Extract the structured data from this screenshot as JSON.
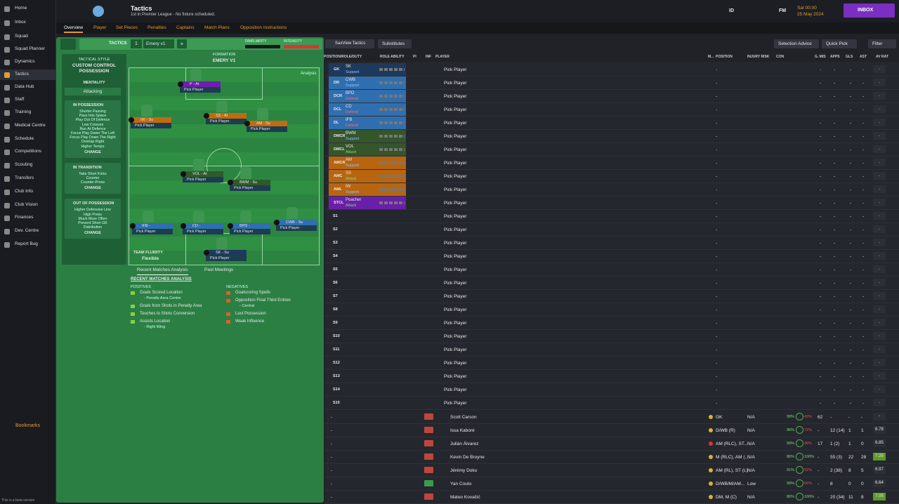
{
  "sidebar": {
    "items": [
      "Home",
      "Inbox",
      "Squad",
      "Squad Planner",
      "Dynamics",
      "Tactics",
      "Data Hub",
      "Staff",
      "Training",
      "Medical Centre",
      "Schedule",
      "Competitions",
      "Scouting",
      "Transfers",
      "Club Info",
      "Club Vision",
      "Finances",
      "Dev. Centre",
      "Report Bug"
    ],
    "bookmarks": "Bookmarks",
    "version_note": "This is a beta version"
  },
  "header": {
    "title": "Tactics",
    "subtitle": "1st in Premier League - No fixture scheduled.",
    "shortcuts": [
      "ID",
      "FM"
    ],
    "time": "Sat 00:00",
    "date": "25 May 2024",
    "inbox": "INBOX"
  },
  "tabs": [
    "Overview",
    "Player",
    "Set Pieces",
    "Penalties",
    "Captains",
    "Match Plans",
    "Opposition Instructions"
  ],
  "tactic_bar": {
    "label": "TACTICS",
    "slot": "1",
    "name": "Emery v1",
    "add": "+",
    "familiarity": "FAMILIARITY",
    "intensity": "INTENSITY"
  },
  "style": {
    "heading": "TACTICAL STYLE",
    "name": "CUSTOM CONTROL POSSESSION",
    "mentality_label": "MENTALITY",
    "mentality": "Attacking"
  },
  "phases": [
    {
      "title": "IN POSSESSION",
      "instructions": [
        "Shorter Passing",
        "Pass Into Space",
        "Play Out Of Defence",
        "Low Crosses",
        "Run At Defence",
        "Focus Play Down The Left",
        "Focus Play Down The Right",
        "Overlap Right",
        "Higher Tempo"
      ],
      "action": "CHANGE"
    },
    {
      "title": "IN TRANSITION",
      "instructions": [
        "Take Short Kicks",
        "Counter",
        "Counter-Press"
      ],
      "action": "CHANGE"
    },
    {
      "title": "OUT OF POSSESSION",
      "instructions": [
        "Higher Defensive Line",
        "High Press",
        "Much More Often",
        "Prevent Short GK",
        "Distribution"
      ],
      "action": "CHANGE"
    }
  ],
  "pitch": {
    "formation_label": "FORMATION",
    "formation": "EMERY V1",
    "analysis": "Analysis",
    "fluidity_label": "TEAM FLUIDITY",
    "fluidity": "Flexible",
    "player_placeholder": "Pick Player",
    "players": [
      {
        "role": "P - At",
        "color": "#6e1fb0"
      },
      {
        "role": "IW - Su",
        "color": "#c06b10"
      },
      {
        "role": "SS - At",
        "color": "#c06b10"
      },
      {
        "role": "AM - Su",
        "color": "#c06b10"
      },
      {
        "role": "VOL - At",
        "color": "#2f5a2a"
      },
      {
        "role": "BWM - Su",
        "color": "#2f5a2a"
      },
      {
        "role": "IFB -",
        "color": "#2f6fb0"
      },
      {
        "role": "CD -",
        "color": "#2f6fb0"
      },
      {
        "role": "BPD -",
        "color": "#2f6fb0"
      },
      {
        "role": "CWB - Su",
        "color": "#2f6fb0"
      },
      {
        "role": "SK - Su",
        "color": "#1d3a5c"
      }
    ]
  },
  "analysis": {
    "tabs": [
      "Recent Matches Analysis",
      "Past Meetings"
    ],
    "heading": "RECENT MATCHES ANALYSIS",
    "positives_label": "POSITIVES",
    "positives": [
      {
        "text": "Goals Scored Location",
        "detail": "- Penalty Area Centre"
      },
      {
        "text": "Goals from Shots in Penalty Area"
      },
      {
        "text": "Touches to Shots Conversion"
      },
      {
        "text": "Assists Location",
        "detail": "- Right Wing"
      }
    ],
    "negatives_label": "NEGATIVES",
    "negatives": [
      {
        "text": "Goalscoring Spells"
      },
      {
        "text": "Opposition Final Third Entries",
        "detail": "- Central"
      },
      {
        "text": "Lost Possession"
      },
      {
        "text": "Weak Influence"
      }
    ]
  },
  "selection": {
    "buttons": [
      "SaxView Tactics",
      "Substitutes"
    ],
    "right_buttons": [
      "Selection Advice",
      "Quick Pick",
      "Filter"
    ],
    "columns": [
      "POSITION/ROLE/DUTY",
      "ROLE ABILITY",
      "PI",
      "INF",
      "PLAYER",
      "M...",
      "POSITION",
      "INJURY RISK",
      "CON",
      "G. MIS",
      "APPS",
      "GLS",
      "AST",
      "AV RAT"
    ],
    "placeholder": "Pick Player",
    "empty": "-",
    "slots": [
      {
        "position": "GK",
        "role": "SK",
        "duty": "Support",
        "color": "#1d3a5c"
      },
      {
        "position": "DR",
        "role": "CWB",
        "duty": "Support",
        "color": "#2f6fb0"
      },
      {
        "position": "DCR",
        "role": "BPD",
        "duty": "Defend",
        "color": "#2f6fb0"
      },
      {
        "position": "DCL",
        "role": "CD",
        "duty": "Defend",
        "color": "#2f6fb0"
      },
      {
        "position": "DL",
        "role": "IFB",
        "duty": "Defend",
        "color": "#2f6fb0"
      },
      {
        "position": "DMCR",
        "role": "BWM",
        "duty": "Support",
        "color": "#35552a"
      },
      {
        "position": "DMCL",
        "role": "VOL",
        "duty": "Attack",
        "color": "#35552a"
      },
      {
        "position": "AMCR",
        "role": "AM",
        "duty": "Support",
        "color": "#b8650f"
      },
      {
        "position": "AMC",
        "role": "SS",
        "duty": "Attack",
        "color": "#b8650f"
      },
      {
        "position": "AML",
        "role": "IW",
        "duty": "Support",
        "color": "#b8650f"
      },
      {
        "position": "STCL",
        "role": "Poacher",
        "duty": "Attack",
        "color": "#6a1fa8"
      },
      {
        "position": "S1"
      },
      {
        "position": "S2"
      },
      {
        "position": "S3"
      },
      {
        "position": "S4"
      },
      {
        "position": "S5"
      },
      {
        "position": "S6"
      },
      {
        "position": "S7"
      },
      {
        "position": "S8"
      },
      {
        "position": "S9"
      },
      {
        "position": "S10"
      },
      {
        "position": "S11"
      },
      {
        "position": "S12"
      },
      {
        "position": "S13"
      },
      {
        "position": "S14"
      },
      {
        "position": "S15"
      }
    ],
    "players": [
      {
        "name": "Scott Carson",
        "position": "GK",
        "injury": "N/A",
        "condition": "99%",
        "sharpness": "49%",
        "goals_missed": "62",
        "apps": "-",
        "goals": "-",
        "assists": "-",
        "rating": "-"
      },
      {
        "name": "Issa Kaboré",
        "position": "D/WB (R)",
        "injury": "N/A",
        "condition": "96%",
        "sharpness": "72%",
        "goals_missed": "-",
        "apps": "12 (14)",
        "goals": "1",
        "assists": "1",
        "rating": "6.78"
      },
      {
        "name": "Julián Álvarez",
        "position": "AM (RLC), ST...",
        "injury": "N/A",
        "condition": "99%",
        "sharpness": "48%",
        "goals_missed": "17",
        "apps": "1 (2)",
        "goals": "1",
        "assists": "0",
        "rating": "6.85"
      },
      {
        "name": "Kevin De Bruyne",
        "position": "M (RLC), AM (...",
        "injury": "N/A",
        "condition": "86%",
        "sharpness": "100%",
        "goals_missed": "-",
        "apps": "55 (3)",
        "goals": "22",
        "assists": "28",
        "rating": "7.25"
      },
      {
        "name": "Jérémy Doku",
        "position": "AM (RL), ST (L)",
        "injury": "N/A",
        "condition": "91%",
        "sharpness": "92%",
        "goals_missed": "-",
        "apps": "2 (38)",
        "goals": "8",
        "assists": "5",
        "rating": "6.97"
      },
      {
        "name": "Yan Couto",
        "position": "D/WB/M/AM...",
        "injury": "Low",
        "condition": "99%",
        "sharpness": "66%",
        "goals_missed": "-",
        "apps": "8",
        "goals": "0",
        "assists": "0",
        "rating": "6.64"
      },
      {
        "name": "Mateo Kovačić",
        "position": "DM, M (C)",
        "injury": "N/A",
        "condition": "86%",
        "sharpness": "100%",
        "goals_missed": "-",
        "apps": "20 (34)",
        "goals": "11",
        "assists": "8",
        "rating": "7.05"
      }
    ]
  }
}
